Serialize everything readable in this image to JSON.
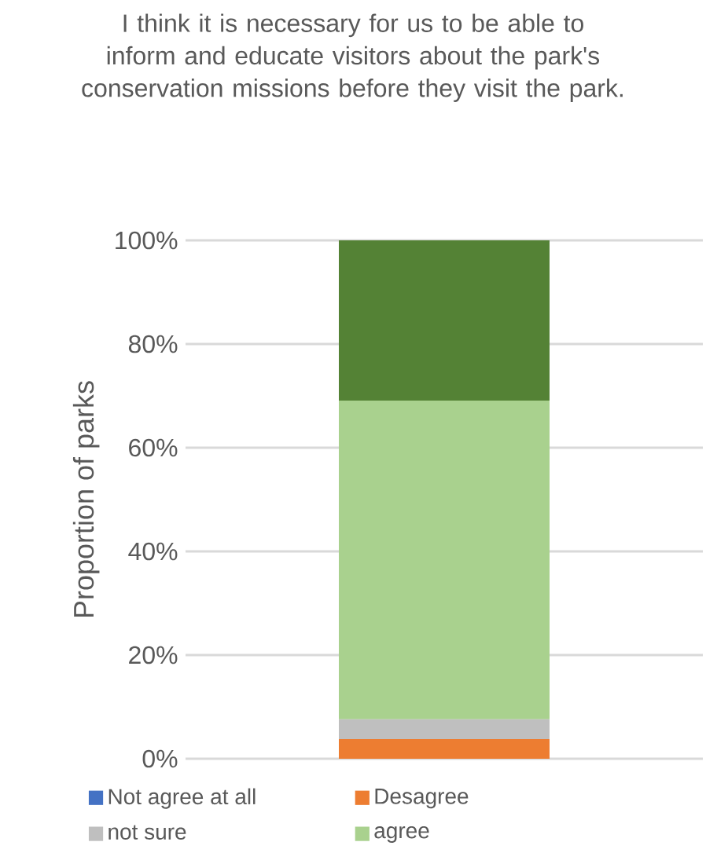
{
  "chart_data": {
    "type": "bar",
    "stacked": true,
    "title": "I think it is necessary for us to be able to inform and educate visitors about the park's conservation missions before they visit the park.",
    "ylabel": "Proportion of parks",
    "categories": [
      null
    ],
    "series": [
      {
        "name": "Not agree at all",
        "color": "#4472c4",
        "values": [
          0
        ]
      },
      {
        "name": "Desagree",
        "color": "#ed7d31",
        "values": [
          3.8
        ]
      },
      {
        "name": "not sure",
        "color": "#bfbfbf",
        "values": [
          3.8
        ]
      },
      {
        "name": "agree",
        "color": "#a9d18e",
        "values": [
          61.5
        ]
      },
      {
        "color": "#548235",
        "values": [
          30.9
        ]
      }
    ],
    "ylim": [
      0,
      100
    ],
    "yticks": [
      {
        "value": 0,
        "label": "0%"
      },
      {
        "value": 20,
        "label": "20%"
      },
      {
        "value": 40,
        "label": "40%"
      },
      {
        "value": 60,
        "label": "60%"
      },
      {
        "value": 80,
        "label": "80%"
      },
      {
        "value": 100,
        "label": "100%"
      }
    ],
    "grid": "y",
    "legend": "bottom"
  }
}
